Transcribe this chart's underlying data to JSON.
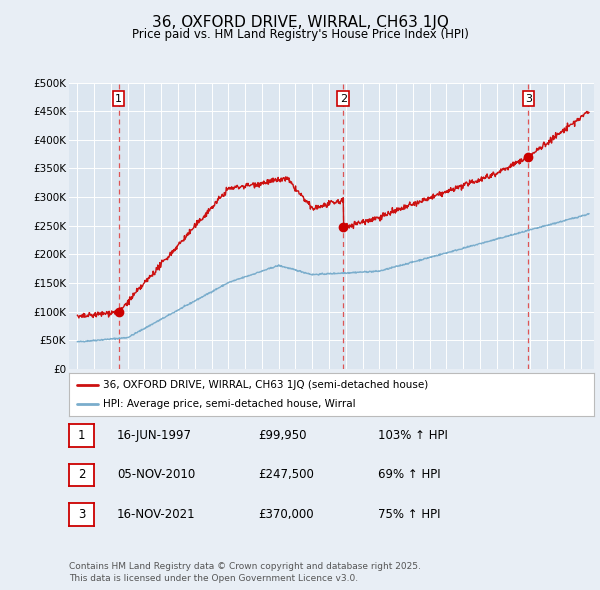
{
  "title": "36, OXFORD DRIVE, WIRRAL, CH63 1JQ",
  "subtitle": "Price paid vs. HM Land Registry's House Price Index (HPI)",
  "ylim": [
    0,
    500000
  ],
  "yticks": [
    0,
    50000,
    100000,
    150000,
    200000,
    250000,
    300000,
    350000,
    400000,
    450000,
    500000
  ],
  "ytick_labels": [
    "£0",
    "£50K",
    "£100K",
    "£150K",
    "£200K",
    "£250K",
    "£300K",
    "£350K",
    "£400K",
    "£450K",
    "£500K"
  ],
  "sale_dates": [
    1997.46,
    2010.85,
    2021.88
  ],
  "sale_prices": [
    99950,
    247500,
    370000
  ],
  "sale_labels": [
    "1",
    "2",
    "3"
  ],
  "vline_color": "#dd5555",
  "sale_marker_color": "#cc0000",
  "legend_line1": "36, OXFORD DRIVE, WIRRAL, CH63 1JQ (semi-detached house)",
  "legend_line2": "HPI: Average price, semi-detached house, Wirral",
  "red_line_color": "#cc1111",
  "blue_line_color": "#7aadcc",
  "footer_text": "Contains HM Land Registry data © Crown copyright and database right 2025.\nThis data is licensed under the Open Government Licence v3.0.",
  "table_entries": [
    {
      "num": "1",
      "date": "16-JUN-1997",
      "price": "£99,950",
      "hpi": "103% ↑ HPI"
    },
    {
      "num": "2",
      "date": "05-NOV-2010",
      "price": "£247,500",
      "hpi": "69% ↑ HPI"
    },
    {
      "num": "3",
      "date": "16-NOV-2021",
      "price": "£370,000",
      "hpi": "75% ↑ HPI"
    }
  ],
  "background_color": "#e8eef5",
  "plot_bg_color": "#dce6f0",
  "grid_color": "#ffffff"
}
